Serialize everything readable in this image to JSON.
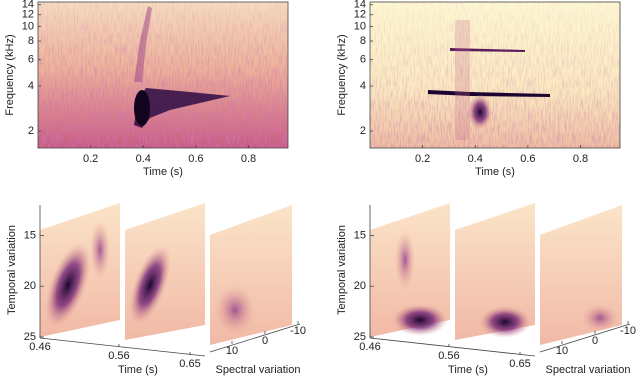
{
  "panels": [
    {
      "ylabel": "Frequency (kHz)",
      "xlabel": "Time (s)",
      "xlim": [
        0,
        0.95
      ],
      "xticks": [
        0.2,
        0.4,
        0.6,
        0.8
      ],
      "ylim": [
        1.54,
        14.6
      ],
      "yticks": [
        2,
        4,
        6,
        8,
        10,
        12,
        14
      ],
      "yscale": "log"
    },
    {
      "ylabel": "Frequency (kHz)",
      "xlabel": "Time (s)",
      "xlim": [
        0,
        0.95
      ],
      "xticks": [
        0.2,
        0.4,
        0.6,
        0.8
      ],
      "ylim": [
        1.54,
        14.6
      ],
      "yticks": [
        2,
        4,
        6,
        8,
        10,
        12,
        14
      ],
      "yscale": "log"
    }
  ],
  "views": [
    {
      "ylabel": "Temporal variation",
      "ylim": [
        12,
        25
      ],
      "yticks": [
        15,
        20,
        25
      ],
      "xlabel": "Time (s)",
      "xticks": [
        0.46,
        0.56,
        0.65
      ],
      "zlabel": "Spectral variation",
      "zticks": [
        10,
        0,
        -10
      ]
    },
    {
      "ylabel": "Temporal variation",
      "ylim": [
        12,
        25
      ],
      "yticks": [
        15,
        20,
        25
      ],
      "xlabel": "Time (s)",
      "xticks": [
        0.46,
        0.56,
        0.65
      ],
      "zlabel": "Spectral variation",
      "zticks": [
        10,
        0,
        -10
      ]
    }
  ]
}
